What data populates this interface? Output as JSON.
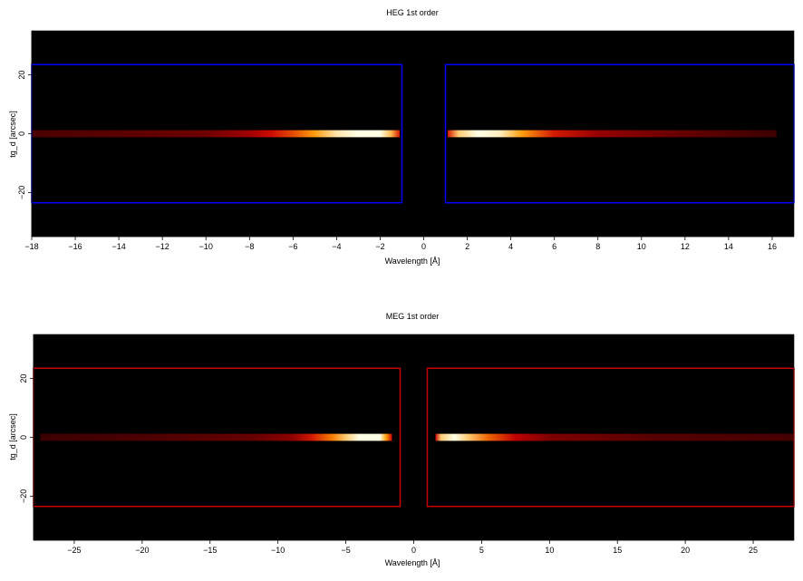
{
  "chart_data": [
    {
      "type": "heatmap",
      "title": "HEG 1st order",
      "xlabel": "Wavelength [Å]",
      "ylabel": "tg_d [arcsec]",
      "xlim": [
        -18,
        17
      ],
      "ylim": [
        -35,
        35
      ],
      "xticks": [
        -18,
        -16,
        -14,
        -12,
        -10,
        -8,
        -6,
        -4,
        -2,
        0,
        2,
        4,
        6,
        8,
        10,
        12,
        14,
        16
      ],
      "yticks": [
        -20,
        0,
        20
      ],
      "box_color": "#0000ff",
      "regions": [
        {
          "x": [
            -18,
            -1
          ],
          "y": [
            -23.5,
            23.5
          ]
        },
        {
          "x": [
            1,
            17
          ],
          "y": [
            -23.5,
            23.5
          ]
        }
      ],
      "trace": {
        "y": 0,
        "half_width": 1.2,
        "x_range": [
          -18,
          16.2
        ],
        "gap": [
          -1.1,
          1.1
        ],
        "profile": [
          {
            "x": -18,
            "v": 0.15
          },
          {
            "x": -14,
            "v": 0.18
          },
          {
            "x": -10,
            "v": 0.22
          },
          {
            "x": -8,
            "v": 0.32
          },
          {
            "x": -7,
            "v": 0.42
          },
          {
            "x": -6,
            "v": 0.55
          },
          {
            "x": -5,
            "v": 0.72
          },
          {
            "x": -4,
            "v": 0.92
          },
          {
            "x": -3,
            "v": 1.0
          },
          {
            "x": -2,
            "v": 1.0
          },
          {
            "x": -1.5,
            "v": 0.8
          },
          {
            "x": -1.1,
            "v": 0.45
          },
          {
            "x": 1.1,
            "v": 0.45
          },
          {
            "x": 1.6,
            "v": 0.85
          },
          {
            "x": 2.5,
            "v": 1.0
          },
          {
            "x": 3.5,
            "v": 0.95
          },
          {
            "x": 4.5,
            "v": 0.72
          },
          {
            "x": 6,
            "v": 0.45
          },
          {
            "x": 8,
            "v": 0.3
          },
          {
            "x": 12,
            "v": 0.2
          },
          {
            "x": 16.2,
            "v": 0.12
          }
        ]
      }
    },
    {
      "type": "heatmap",
      "title": "MEG 1st order",
      "xlabel": "Wavelength [Å]",
      "ylabel": "tg_d [arcsec]",
      "xlim": [
        -28,
        28
      ],
      "ylim": [
        -35,
        35
      ],
      "xticks": [
        -25,
        -20,
        -15,
        -10,
        -5,
        0,
        5,
        10,
        15,
        20,
        25
      ],
      "yticks": [
        -20,
        0,
        20
      ],
      "box_color": "#cc0000",
      "regions": [
        {
          "x": [
            -28,
            -1
          ],
          "y": [
            -23.5,
            23.5
          ]
        },
        {
          "x": [
            1,
            28
          ],
          "y": [
            -23.5,
            23.5
          ]
        }
      ],
      "trace": {
        "y": 0,
        "half_width": 1.2,
        "x_range": [
          -27.5,
          28
        ],
        "gap": [
          -1.6,
          1.6
        ],
        "profile": [
          {
            "x": -27.5,
            "v": 0.12
          },
          {
            "x": -20,
            "v": 0.15
          },
          {
            "x": -12,
            "v": 0.2
          },
          {
            "x": -9,
            "v": 0.28
          },
          {
            "x": -7.5,
            "v": 0.45
          },
          {
            "x": -6,
            "v": 0.65
          },
          {
            "x": -5,
            "v": 0.85
          },
          {
            "x": -4,
            "v": 1.0
          },
          {
            "x": -2.5,
            "v": 1.0
          },
          {
            "x": -2,
            "v": 0.7
          },
          {
            "x": -1.6,
            "v": 0.4
          },
          {
            "x": 1.6,
            "v": 0.4
          },
          {
            "x": 2,
            "v": 0.85
          },
          {
            "x": 3,
            "v": 1.0
          },
          {
            "x": 4,
            "v": 0.85
          },
          {
            "x": 5.5,
            "v": 0.6
          },
          {
            "x": 7.5,
            "v": 0.38
          },
          {
            "x": 10,
            "v": 0.25
          },
          {
            "x": 18,
            "v": 0.17
          },
          {
            "x": 28,
            "v": 0.14
          }
        ]
      }
    }
  ]
}
